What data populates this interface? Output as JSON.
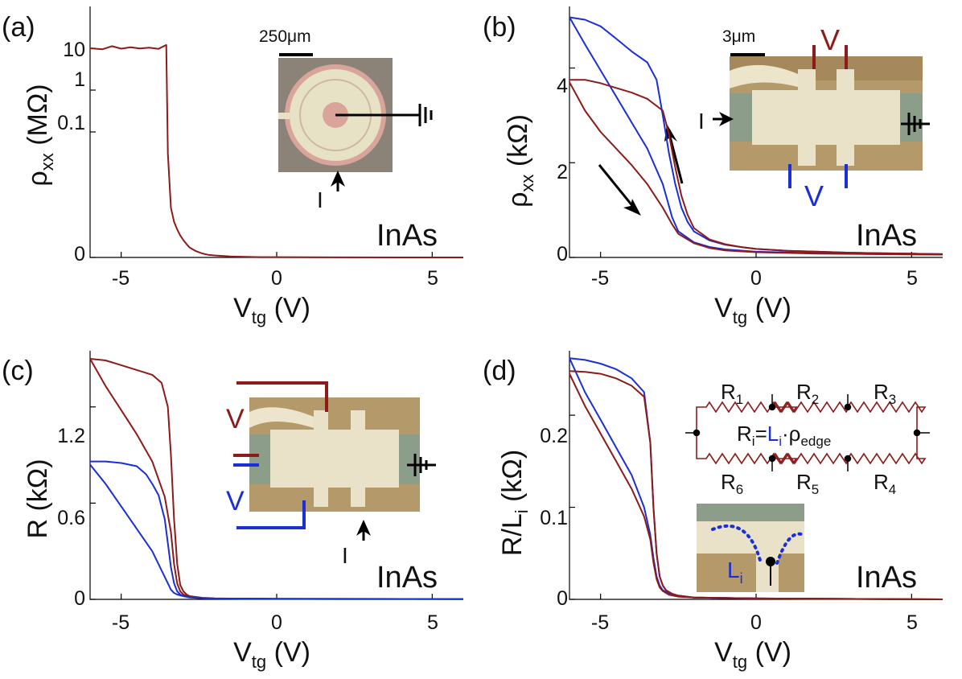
{
  "colors": {
    "red": "#8e1a1a",
    "blue": "#1a2fd6",
    "black": "#000000"
  },
  "shared": {
    "material": "InAs",
    "xlabel_main": "V",
    "xlabel_sub": "tg",
    "xlabel_unit": " (V)",
    "x_ticks": [
      -5,
      0,
      5
    ],
    "xlim": [
      -6,
      6
    ]
  },
  "panels": {
    "a": {
      "label": "(a)",
      "ylabel_main": "ρ",
      "ylabel_sub": "xx",
      "ylabel_unit": " (MΩ)",
      "y_ticks": [
        "10",
        "1",
        "0.1",
        "0"
      ],
      "scale_text": "250μm",
      "current_label": "I"
    },
    "b": {
      "label": "(b)",
      "ylabel_main": "ρ",
      "ylabel_sub": "xx",
      "ylabel_unit": " (kΩ)",
      "y_ticks": [
        "4",
        "2",
        "0"
      ],
      "scale_text": "3μm",
      "current_label": "I",
      "v_top": "V",
      "v_bottom": "V"
    },
    "c": {
      "label": "(c)",
      "ylabel_main": "R",
      "ylabel_unit": " (kΩ)",
      "y_ticks": [
        "1.2",
        "0.6",
        "0"
      ],
      "current_label": "I",
      "v_red": "V",
      "v_blue": "V"
    },
    "d": {
      "label": "(d)",
      "ylabel_main": "R/L",
      "ylabel_sub": "i",
      "ylabel_unit": " (kΩ)",
      "y_ticks": [
        "0.2",
        "0.1",
        "0"
      ],
      "resistors_top": [
        "R",
        "R",
        "R"
      ],
      "resistors_top_sub": [
        "1",
        "2",
        "3"
      ],
      "resistors_bottom": [
        "R",
        "R",
        "R"
      ],
      "resistors_bottom_sub": [
        "6",
        "5",
        "4"
      ],
      "formula_lhs": "R",
      "formula_lhs_sub": "i",
      "formula_eq": "=",
      "formula_L": "L",
      "formula_L_sub": "i",
      "formula_rho": "·ρ",
      "formula_rho_sub": "edge",
      "inset_label": "L",
      "inset_label_sub": "i"
    }
  },
  "chart_data": [
    {
      "panel": "a",
      "type": "line",
      "title": "",
      "xlabel": "V_tg (V)",
      "ylabel": "ρ_xx (MΩ)",
      "xlim": [
        -6,
        6
      ],
      "y_scale": "mixed (log above ~0.05 MΩ, linear near 0)",
      "series": [
        {
          "name": "ρxx",
          "color": "red",
          "x": [
            -6.0,
            -5.6,
            -5.3,
            -5.0,
            -4.7,
            -4.4,
            -4.1,
            -3.8,
            -3.55,
            -3.5,
            -3.4,
            -3.3,
            -3.2,
            -3.1,
            -3.0,
            -2.9,
            -2.8,
            -2.6,
            -2.4,
            -2.2,
            -2.0,
            -1.5,
            -1.0,
            -0.5,
            0.0,
            2.0,
            4.0,
            6.0
          ],
          "y": [
            10.0,
            9.5,
            11.2,
            9.8,
            10.6,
            9.9,
            10.3,
            9.7,
            12.0,
            0.0312,
            0.0149,
            0.0107,
            0.0084,
            0.0066,
            0.0052,
            0.004,
            0.003,
            0.0019,
            0.0012,
            0.0008,
            0.0006,
            0.0003,
            0.0002,
            0.0001,
            0.0001,
            3e-05,
            0.0,
            0.0
          ]
        }
      ]
    },
    {
      "panel": "b",
      "type": "line",
      "title": "",
      "xlabel": "V_tg (V)",
      "ylabel": "ρ_xx (kΩ)",
      "xlim": [
        -6,
        6
      ],
      "ylim": [
        0,
        5.3
      ],
      "series": [
        {
          "name": "blue sweep up",
          "color": "blue",
          "x": [
            -6.0,
            -5.5,
            -5.0,
            -4.5,
            -4.0,
            -3.5,
            -3.2,
            -3.0,
            -2.8,
            -2.6,
            -2.4,
            -2.2,
            -2.0,
            -1.5,
            -1.0,
            -0.5,
            0.0,
            1.0,
            2.0,
            3.0,
            4.0,
            5.0,
            6.0
          ],
          "y": [
            5.07,
            5.02,
            4.88,
            4.62,
            4.35,
            4.12,
            3.75,
            3.0,
            2.2,
            1.55,
            1.05,
            0.75,
            0.55,
            0.36,
            0.27,
            0.22,
            0.18,
            0.14,
            0.12,
            0.1,
            0.09,
            0.08,
            0.07
          ]
        },
        {
          "name": "blue sweep down",
          "color": "blue",
          "x": [
            -6.0,
            -5.5,
            -5.0,
            -4.5,
            -4.0,
            -3.5,
            -3.0,
            -2.7,
            -2.5,
            -2.0,
            -1.5,
            -1.0,
            0.0,
            2.0,
            4.0,
            6.0
          ],
          "y": [
            5.07,
            4.5,
            3.95,
            3.4,
            2.85,
            2.3,
            1.55,
            0.85,
            0.55,
            0.32,
            0.22,
            0.17,
            0.12,
            0.09,
            0.07,
            0.06
          ]
        },
        {
          "name": "red sweep up",
          "color": "red",
          "x": [
            -6.0,
            -5.5,
            -5.0,
            -4.5,
            -4.0,
            -3.5,
            -3.0,
            -2.8,
            -2.6,
            -2.4,
            -2.2,
            -2.0,
            -1.5,
            -1.0,
            -0.5,
            0.0,
            1.0,
            2.0,
            3.0,
            4.0,
            5.0,
            6.0
          ],
          "y": [
            3.75,
            3.75,
            3.68,
            3.58,
            3.48,
            3.35,
            3.1,
            2.6,
            1.9,
            1.3,
            0.9,
            0.62,
            0.38,
            0.28,
            0.22,
            0.18,
            0.14,
            0.12,
            0.1,
            0.09,
            0.08,
            0.07
          ]
        },
        {
          "name": "red sweep down",
          "color": "red",
          "x": [
            -6.0,
            -5.5,
            -5.0,
            -4.5,
            -4.0,
            -3.5,
            -3.0,
            -2.7,
            -2.5,
            -2.0,
            -1.5,
            -1.0,
            0.0,
            2.0,
            4.0,
            6.0
          ],
          "y": [
            3.7,
            3.1,
            2.65,
            2.3,
            1.95,
            1.55,
            1.05,
            0.7,
            0.5,
            0.3,
            0.2,
            0.15,
            0.11,
            0.08,
            0.07,
            0.06
          ]
        }
      ]
    },
    {
      "panel": "c",
      "type": "line",
      "title": "",
      "xlabel": "V_tg (V)",
      "ylabel": "R (kΩ)",
      "xlim": [
        -6,
        6
      ],
      "ylim": [
        0,
        1.55
      ],
      "series": [
        {
          "name": "red sweep up",
          "color": "red",
          "x": [
            -6.0,
            -5.5,
            -5.0,
            -4.5,
            -4.0,
            -3.7,
            -3.5,
            -3.4,
            -3.3,
            -3.2,
            -3.1,
            -3.0,
            -2.9,
            -2.8,
            -2.6,
            -2.4,
            -2.0,
            -1.0,
            0.0,
            2.0,
            4.0,
            6.0
          ],
          "y": [
            1.5,
            1.49,
            1.46,
            1.43,
            1.4,
            1.35,
            1.2,
            0.9,
            0.5,
            0.22,
            0.09,
            0.05,
            0.03,
            0.02,
            0.015,
            0.01,
            0.006,
            0.004,
            0.003,
            0.002,
            0.002,
            0.002
          ]
        },
        {
          "name": "red sweep down",
          "color": "red",
          "x": [
            -6.0,
            -5.5,
            -5.0,
            -4.5,
            -4.0,
            -3.6,
            -3.4,
            -3.3,
            -3.2,
            -3.1,
            -3.0,
            -2.8,
            -2.5,
            -2.0,
            0.0,
            6.0
          ],
          "y": [
            1.5,
            1.33,
            1.18,
            1.03,
            0.86,
            0.64,
            0.42,
            0.22,
            0.1,
            0.05,
            0.03,
            0.015,
            0.008,
            0.005,
            0.003,
            0.002
          ]
        },
        {
          "name": "blue sweep up",
          "color": "blue",
          "x": [
            -6.0,
            -5.5,
            -5.0,
            -4.5,
            -4.2,
            -4.0,
            -3.8,
            -3.6,
            -3.5,
            -3.4,
            -3.3,
            -3.2,
            -3.1,
            -3.0,
            -2.8,
            -2.5,
            -2.0,
            0.0,
            6.0
          ],
          "y": [
            0.86,
            0.86,
            0.85,
            0.83,
            0.78,
            0.72,
            0.65,
            0.5,
            0.35,
            0.2,
            0.1,
            0.05,
            0.03,
            0.02,
            0.012,
            0.008,
            0.005,
            0.003,
            0.002
          ]
        },
        {
          "name": "blue sweep down",
          "color": "blue",
          "x": [
            -6.0,
            -5.5,
            -5.0,
            -4.5,
            -4.0,
            -3.7,
            -3.5,
            -3.4,
            -3.3,
            -3.2,
            -3.0,
            -2.7,
            -2.5,
            -2.0,
            0.0,
            6.0
          ],
          "y": [
            0.84,
            0.72,
            0.58,
            0.44,
            0.3,
            0.18,
            0.1,
            0.06,
            0.04,
            0.03,
            0.02,
            0.012,
            0.008,
            0.005,
            0.003,
            0.002
          ]
        }
      ]
    },
    {
      "panel": "d",
      "type": "line",
      "title": "",
      "xlabel": "V_tg (V)",
      "ylabel": "R/L_i (kΩ)",
      "xlim": [
        -6,
        6
      ],
      "ylim": [
        0,
        0.27
      ],
      "series": [
        {
          "name": "blue sweep up",
          "color": "blue",
          "x": [
            -6.0,
            -5.5,
            -5.0,
            -4.5,
            -4.0,
            -3.6,
            -3.4,
            -3.3,
            -3.2,
            -3.1,
            -3.0,
            -2.9,
            -2.7,
            -2.5,
            -2.0,
            0.0,
            6.0
          ],
          "y": [
            0.262,
            0.26,
            0.256,
            0.25,
            0.24,
            0.225,
            0.17,
            0.1,
            0.05,
            0.025,
            0.015,
            0.01,
            0.006,
            0.004,
            0.002,
            0.001,
            0.0
          ]
        },
        {
          "name": "blue sweep down",
          "color": "blue",
          "x": [
            -6.0,
            -5.5,
            -5.0,
            -4.5,
            -4.0,
            -3.6,
            -3.4,
            -3.3,
            -3.2,
            -3.1,
            -3.0,
            -2.8,
            -2.5,
            -2.0,
            0.0,
            6.0
          ],
          "y": [
            0.262,
            0.225,
            0.195,
            0.165,
            0.135,
            0.1,
            0.07,
            0.045,
            0.025,
            0.015,
            0.01,
            0.006,
            0.004,
            0.002,
            0.001,
            0.0
          ]
        },
        {
          "name": "red sweep up",
          "color": "red",
          "x": [
            -6.0,
            -5.5,
            -5.0,
            -4.5,
            -4.0,
            -3.6,
            -3.4,
            -3.3,
            -3.2,
            -3.1,
            -3.0,
            -2.9,
            -2.7,
            -2.5,
            -2.0,
            0.0,
            6.0
          ],
          "y": [
            0.248,
            0.247,
            0.245,
            0.24,
            0.232,
            0.22,
            0.17,
            0.1,
            0.05,
            0.025,
            0.015,
            0.01,
            0.006,
            0.004,
            0.002,
            0.001,
            0.0
          ]
        },
        {
          "name": "red sweep down",
          "color": "red",
          "x": [
            -6.0,
            -5.5,
            -5.0,
            -4.5,
            -4.0,
            -3.6,
            -3.4,
            -3.3,
            -3.2,
            -3.1,
            -3.0,
            -2.8,
            -2.5,
            -2.0,
            0.0,
            6.0
          ],
          "y": [
            0.245,
            0.21,
            0.18,
            0.15,
            0.12,
            0.09,
            0.065,
            0.04,
            0.022,
            0.013,
            0.009,
            0.005,
            0.003,
            0.002,
            0.001,
            0.0
          ]
        }
      ]
    }
  ]
}
